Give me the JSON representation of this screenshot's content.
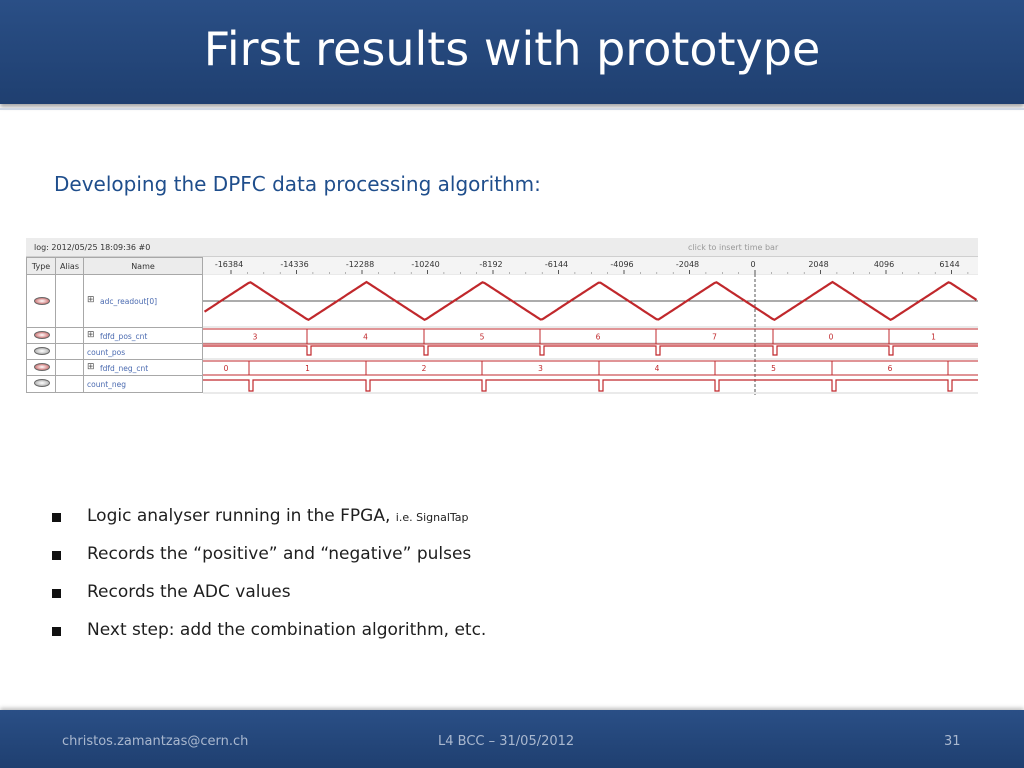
{
  "slide": {
    "title": "First results with prototype",
    "subtitle": "Developing  the DPFC data processing algorithm:"
  },
  "signaltap": {
    "log_label": "log: 2012/05/25 18:09:36  #0",
    "time_bar_hint": "click to insert time bar",
    "columns": {
      "type": "Type",
      "alias": "Alias",
      "name": "Name"
    },
    "time_ticks": [
      "-16384",
      "-14336",
      "-12288",
      "-10240",
      "-8192",
      "-6144",
      "-4096",
      "-2048",
      "0",
      "2048",
      "4096",
      "6144"
    ],
    "signals": [
      {
        "name": "adc_readout[0]",
        "expandable": true
      },
      {
        "name": "fdfd_pos_cnt",
        "expandable": true
      },
      {
        "name": "count_pos",
        "expandable": false
      },
      {
        "name": "fdfd_neg_cnt",
        "expandable": true
      },
      {
        "name": "count_neg",
        "expandable": false
      }
    ],
    "pos_cnt_values": [
      "3",
      "4",
      "5",
      "6",
      "7",
      "0",
      "1"
    ],
    "neg_cnt_values": [
      "0",
      "1",
      "2",
      "3",
      "4",
      "5",
      "6"
    ],
    "colors": {
      "waveform": "#c0282c",
      "trigger": "#555555"
    }
  },
  "bullets": [
    {
      "text": "Logic analyser running in the FPGA, ",
      "small": "i.e. SignalTap"
    },
    {
      "text": "Records the “positive” and “negative” pulses",
      "small": ""
    },
    {
      "text": "Records the ADC values",
      "small": ""
    },
    {
      "text": "Next step: add the combination algorithm, etc.",
      "small": ""
    }
  ],
  "footer": {
    "author": "christos.zamantzas@cern.ch",
    "event": "L4 BCC – 31/05/2012",
    "page": "31"
  }
}
